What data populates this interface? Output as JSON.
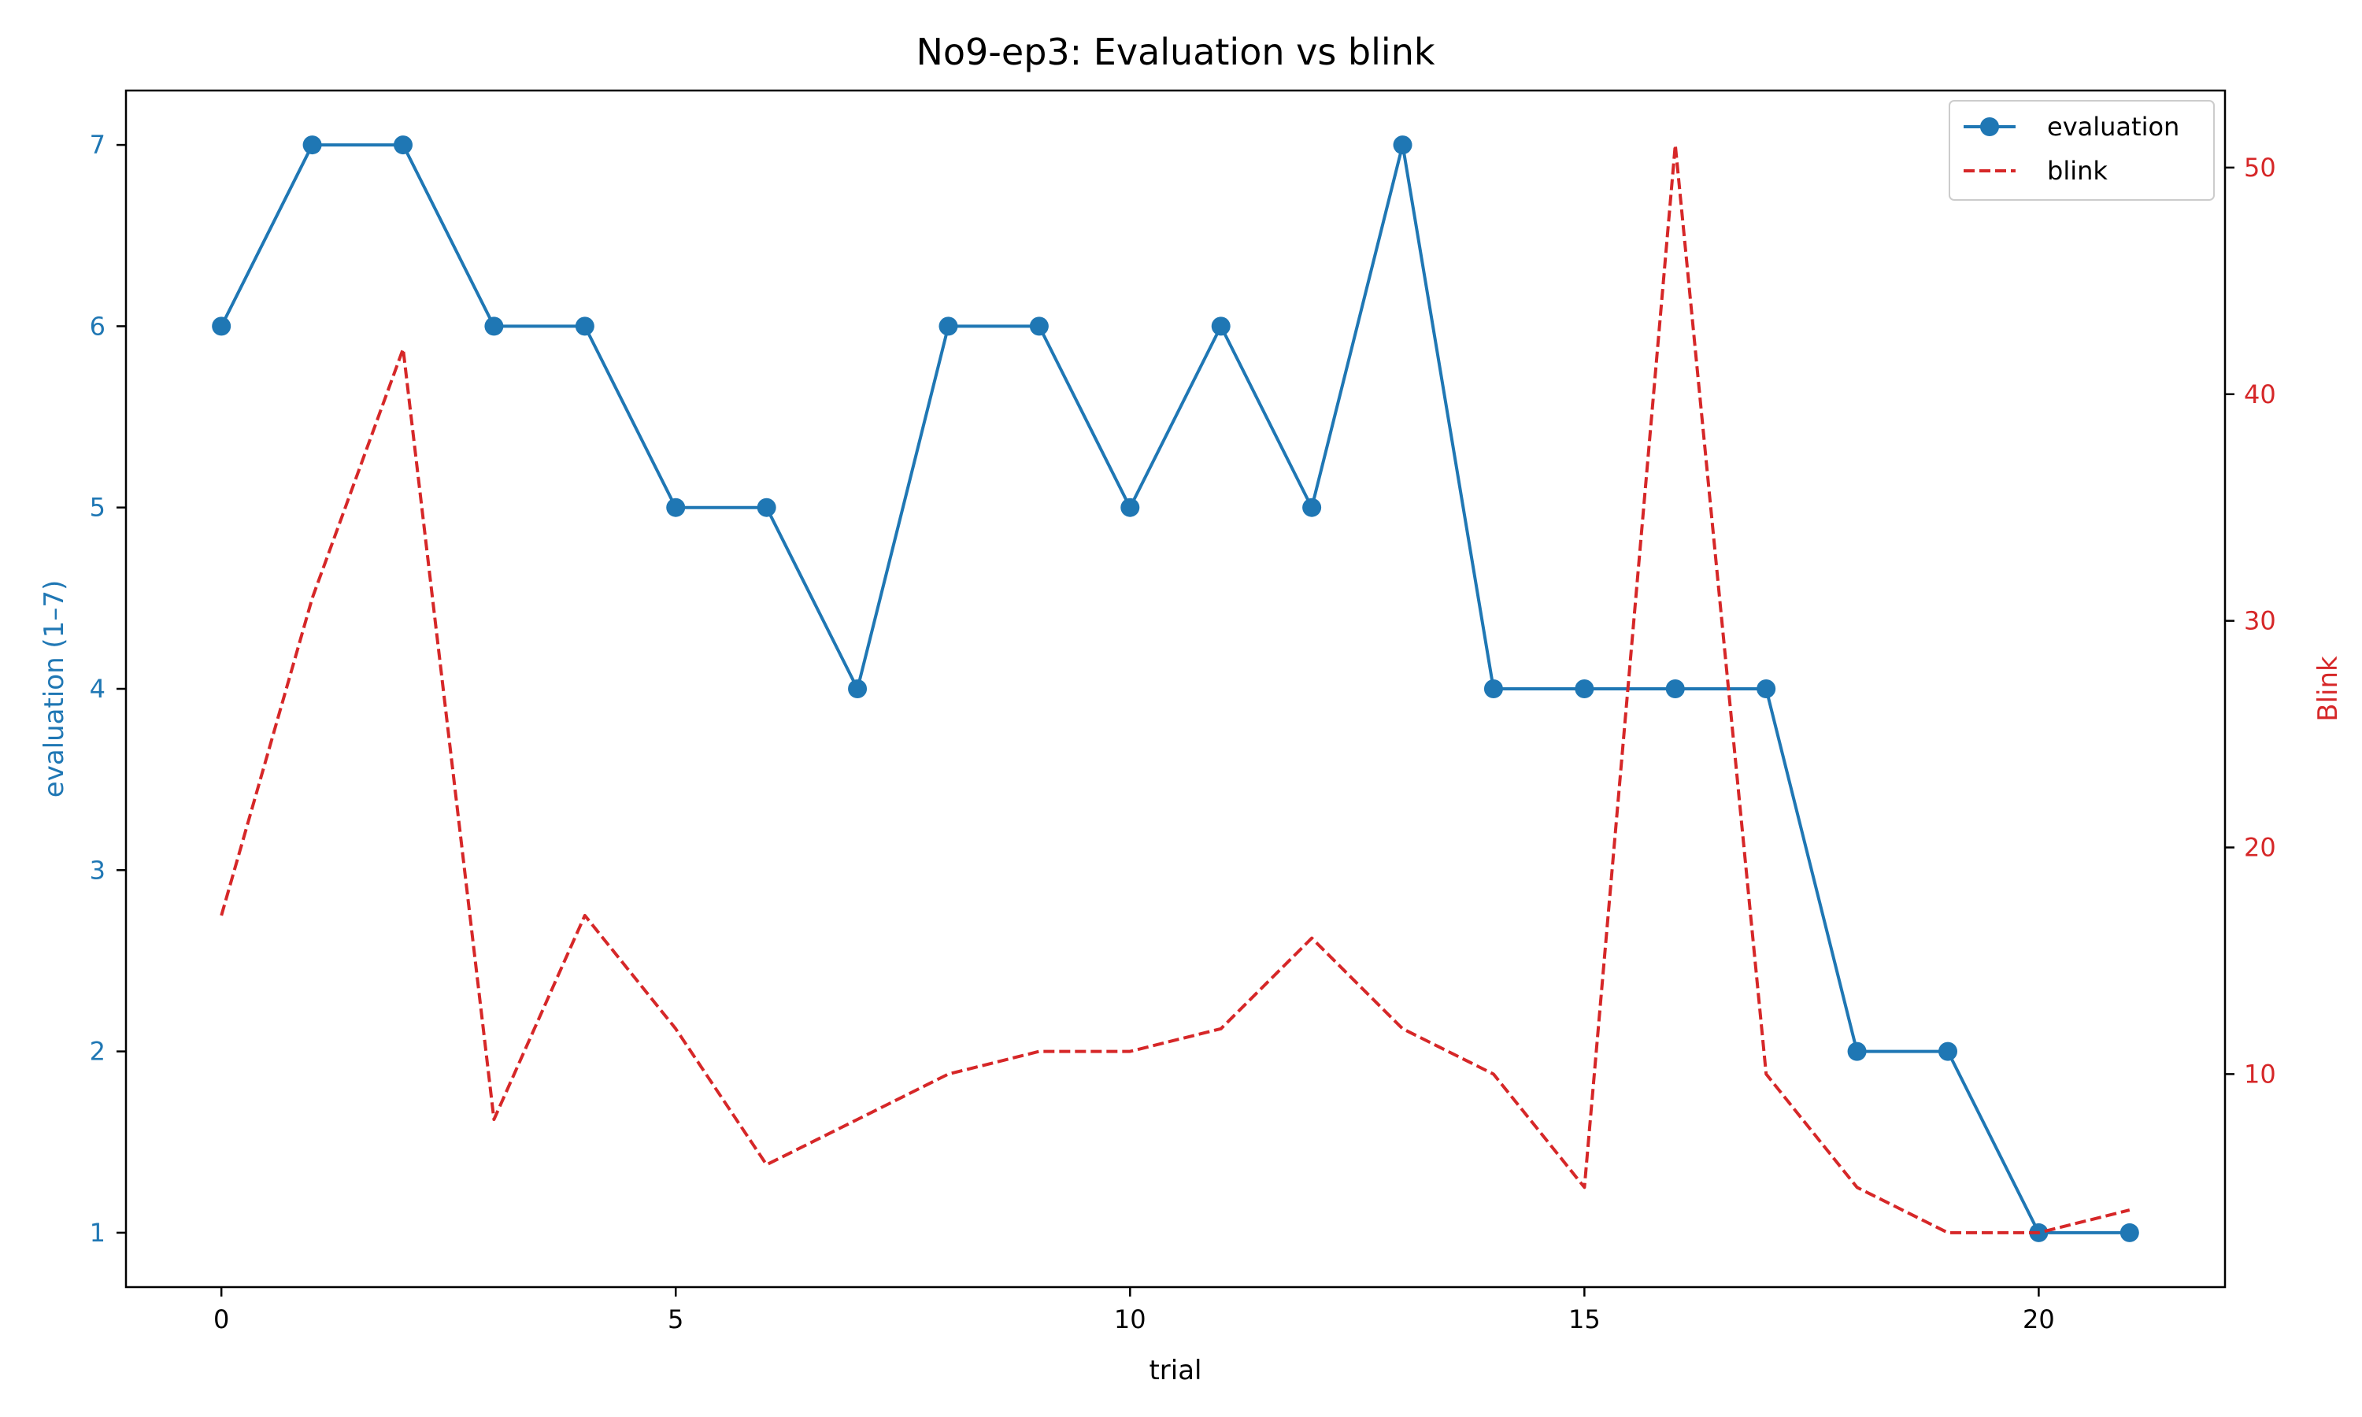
{
  "chart_data": {
    "type": "line",
    "title": "No9-ep3: Evaluation vs blink",
    "xlabel": "trial",
    "ylabel_left": "evaluation (1–7)",
    "ylabel_right": "Blink",
    "x": [
      0,
      1,
      2,
      3,
      4,
      5,
      6,
      7,
      8,
      9,
      10,
      11,
      12,
      13,
      14,
      15,
      16,
      17,
      18,
      19,
      20,
      21
    ],
    "xlim": [
      -1.05,
      22.05
    ],
    "xticks": [
      0,
      5,
      10,
      15,
      20
    ],
    "ylim_left": [
      0.7,
      7.3
    ],
    "yticks_left": [
      1,
      2,
      3,
      4,
      5,
      6,
      7
    ],
    "ylim_right": [
      0.6,
      53.4
    ],
    "yticks_right": [
      10,
      20,
      30,
      40,
      50
    ],
    "grid": false,
    "legend": "top-right",
    "series": [
      {
        "name": "evaluation",
        "axis": "left",
        "style": "solid-marker",
        "color": "#1f77b4",
        "values": [
          6,
          7,
          7,
          6,
          6,
          5,
          5,
          4,
          6,
          6,
          5,
          6,
          5,
          7,
          4,
          4,
          4,
          4,
          2,
          2,
          1,
          1
        ]
      },
      {
        "name": "blink",
        "axis": "right",
        "style": "dashed",
        "color": "#d62728",
        "values": [
          17,
          31,
          42,
          8,
          17,
          12,
          6,
          8,
          10,
          11,
          11,
          12,
          16,
          12,
          10,
          5,
          51,
          10,
          5,
          3,
          3,
          4
        ]
      }
    ]
  }
}
